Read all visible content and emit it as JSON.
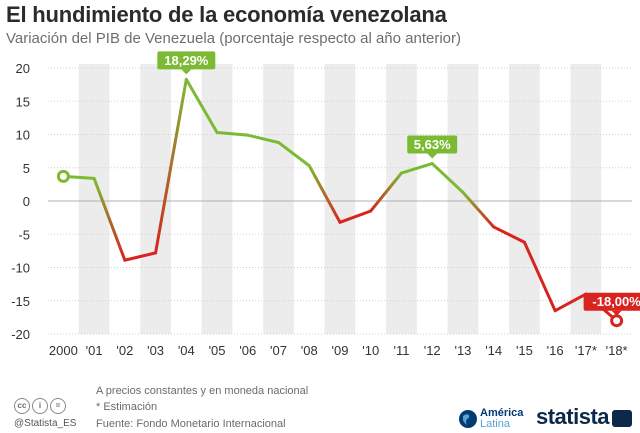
{
  "header": {
    "title": "El hundimiento de la economía venezolana",
    "subtitle": "Variación del PIB de Venezuela (porcentaje respecto al año anterior)"
  },
  "chart_data": {
    "type": "line",
    "x": [
      "2000",
      "'01",
      "'02",
      "'03",
      "'04",
      "'05",
      "'06",
      "'07",
      "'08",
      "'09",
      "'10",
      "'11",
      "'12",
      "'13",
      "'14",
      "'15",
      "'16",
      "'17*",
      "'18*"
    ],
    "values": [
      3.7,
      3.4,
      -8.9,
      -7.8,
      18.29,
      10.3,
      9.9,
      8.8,
      5.3,
      -3.2,
      -1.5,
      4.2,
      5.63,
      1.3,
      -3.9,
      -6.2,
      -16.5,
      -14.0,
      -18.0
    ],
    "callouts": [
      {
        "index": 4,
        "text": "18,29%",
        "color": "#7cba34"
      },
      {
        "index": 12,
        "text": "5,63%",
        "color": "#7cba34"
      },
      {
        "index": 18,
        "text": "-18,00%",
        "color": "#d8231f"
      }
    ],
    "yticks": [
      "20",
      "15",
      "10",
      "5",
      "0",
      "-5",
      "-10",
      "-15",
      "-20"
    ],
    "ylim": [
      -20,
      20
    ],
    "grid": true,
    "colors": {
      "positive": "#7cba34",
      "negative": "#d8231f",
      "band": "#ececec",
      "grid": "#cfcfcf"
    }
  },
  "footer": {
    "note1": "A precios constantes y en moneda nacional",
    "note2": "* Estimación",
    "source": "Fuente: Fondo Monetario Internacional",
    "handle": "@Statista_ES",
    "partner_line1": "América",
    "partner_line2": "Latina",
    "brand": "statista",
    "license_icons": [
      "cc-icon",
      "by-icon",
      "nd-icon"
    ]
  }
}
